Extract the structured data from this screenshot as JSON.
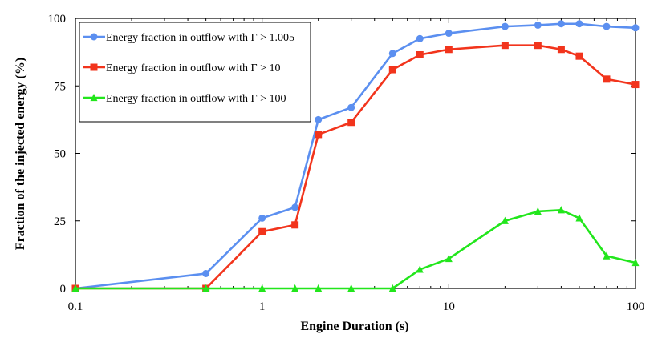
{
  "chart_data": {
    "type": "line",
    "xlabel": "Engine Duration (s)",
    "ylabel": "Fraction of the injected energy (%)",
    "xscale": "log",
    "xlim": [
      0.1,
      100
    ],
    "ylim": [
      0,
      100
    ],
    "x_ticks": [
      0.1,
      1,
      10,
      100
    ],
    "x_tick_labels": [
      "0.1",
      "1",
      "10",
      "100"
    ],
    "y_ticks": [
      0,
      25,
      50,
      75,
      100
    ],
    "y_tick_labels": [
      "0",
      "25",
      "50",
      "75",
      "100"
    ],
    "grid": false,
    "legend_position": "top-left",
    "x": [
      0.1,
      0.5,
      1,
      1.5,
      2,
      3,
      5,
      7,
      10,
      20,
      30,
      40,
      50,
      70,
      100
    ],
    "series": [
      {
        "name": "Energy fraction in outflow with Γ > 1.005",
        "color": "#5b8ff0",
        "marker": "circle",
        "values": [
          0,
          5.5,
          26,
          30,
          62.5,
          67,
          87,
          92.5,
          94.5,
          97,
          97.5,
          98,
          98,
          97,
          96.5
        ]
      },
      {
        "name": "Energy fraction in outflow with Γ > 10",
        "color": "#f2341c",
        "marker": "square",
        "values": [
          0,
          0,
          21,
          23.5,
          57,
          61.5,
          81,
          86.5,
          88.5,
          90,
          90,
          88.5,
          86,
          77.5,
          75.5
        ]
      },
      {
        "name": "Energy fraction in outflow with Γ > 100",
        "color": "#22e61c",
        "marker": "triangle",
        "values": [
          0,
          0,
          0,
          0,
          0,
          0,
          0,
          7,
          11,
          25,
          28.5,
          29,
          26,
          12,
          9.5
        ]
      }
    ]
  }
}
